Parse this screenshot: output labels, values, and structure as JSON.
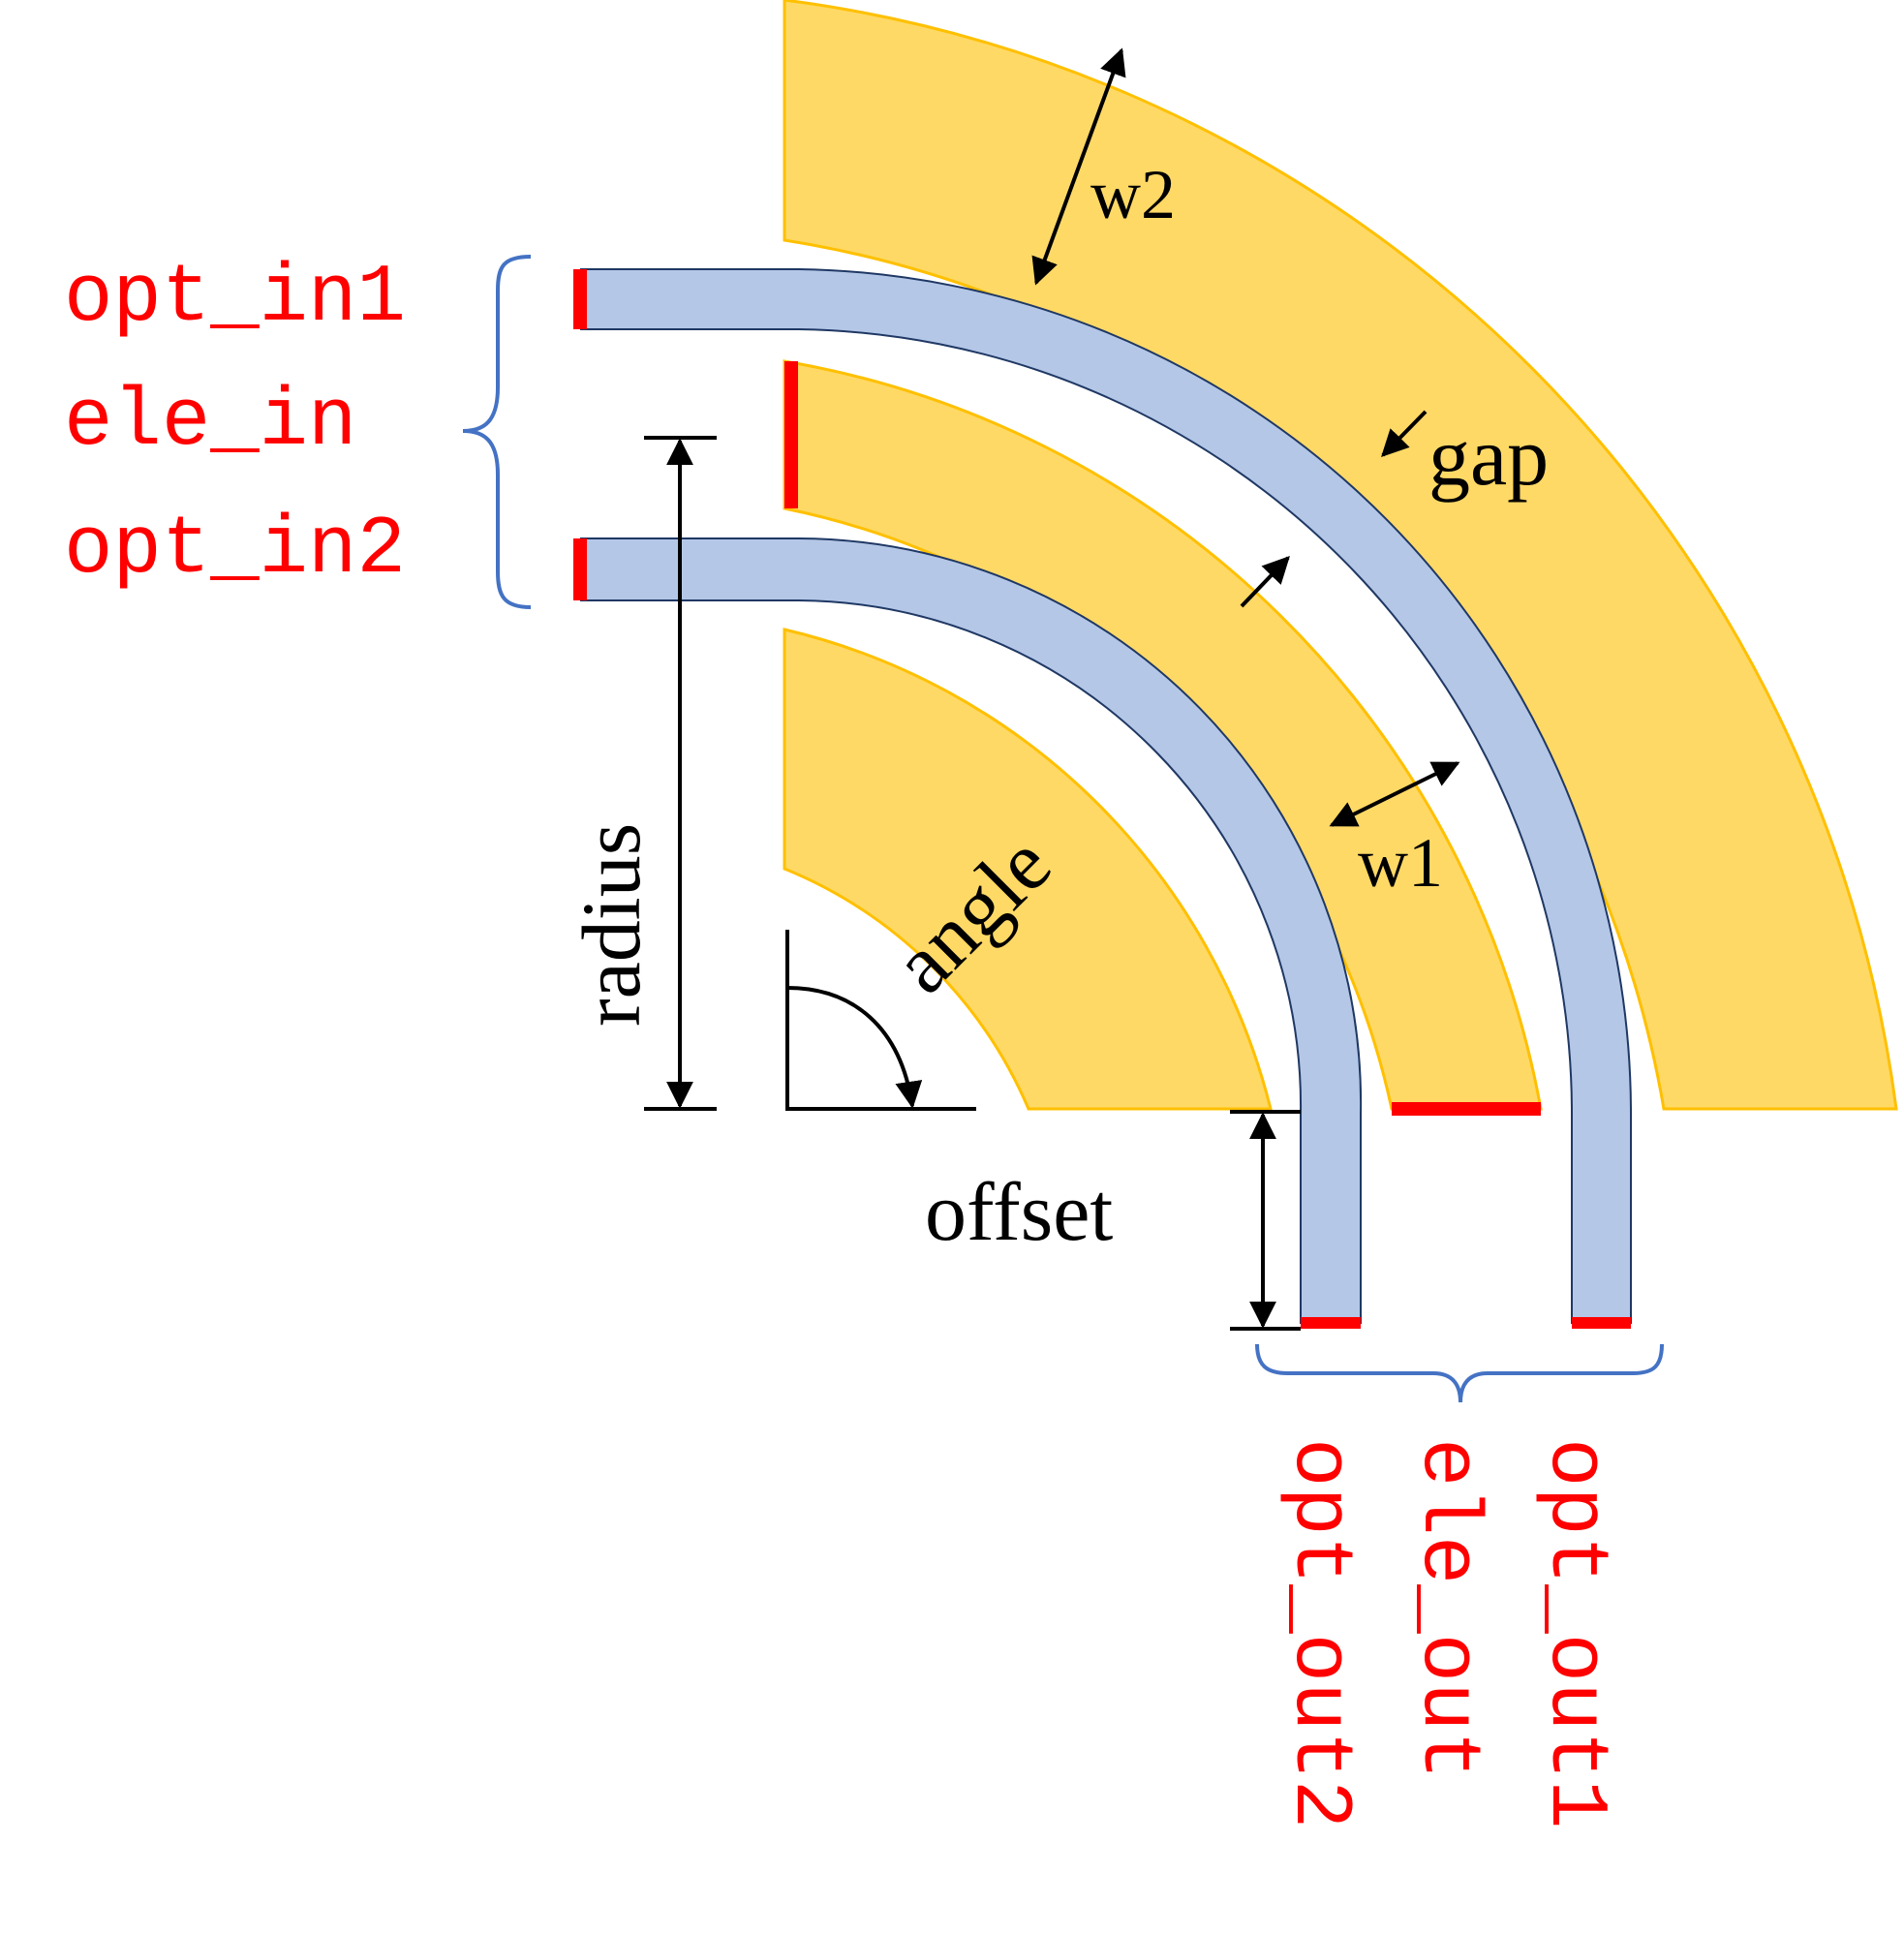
{
  "ports": {
    "in_labels": [
      "opt_in1",
      "ele_in",
      "opt_in2"
    ],
    "out_labels": [
      "opt_out1",
      "ele_out",
      "opt_out2"
    ]
  },
  "dimensions": {
    "w2": "w2",
    "gap": "gap",
    "w1": "w1",
    "radius": "radius",
    "angle": "angle",
    "offset": "offset"
  },
  "colors": {
    "electrode_fill": "#ffd966",
    "electrode_stroke": "#ffc000",
    "waveguide_fill": "#b4c7e7",
    "waveguide_stroke": "#1f3864",
    "port": "#ff0000",
    "brace": "#4472c4"
  }
}
